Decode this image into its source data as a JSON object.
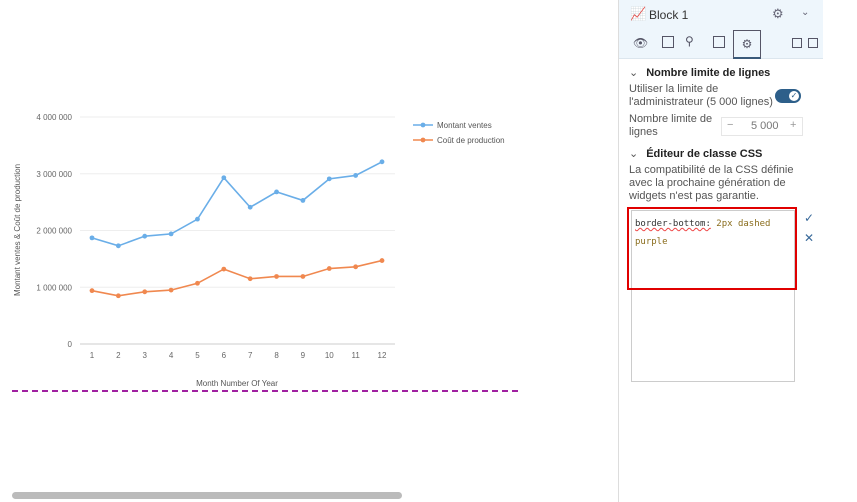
{
  "panel": {
    "title": "Block 1",
    "section1": {
      "title": "Nombre limite de lignes",
      "toggle_label": "Utiliser la limite de l'administrateur (5 000 lignes)",
      "toggle_on": true,
      "limit_label": "Nombre limite de lignes",
      "limit_value": "5 000",
      "minus": "−",
      "plus": "+"
    },
    "section2": {
      "title": "Éditeur de classe CSS",
      "note": "La compatibilité de la CSS définie avec la prochaine génération de widgets n'est pas garantie.",
      "css_property": "border-bottom:",
      "css_value": " 2px dashed purple",
      "apply": "✓",
      "cancel": "✕"
    }
  },
  "colors": {
    "series1": "#6aaee8",
    "series2": "#f0884f",
    "dashed_border": "#a020a0",
    "highlight": "#e00000"
  },
  "chart_data": {
    "type": "line",
    "categories": [
      "1",
      "2",
      "3",
      "4",
      "5",
      "6",
      "7",
      "8",
      "9",
      "10",
      "11",
      "12"
    ],
    "series": [
      {
        "name": "Montant ventes",
        "values": [
          1870000,
          1730000,
          1900000,
          1940000,
          2200000,
          2930000,
          2410000,
          2680000,
          2530000,
          2910000,
          2970000,
          3210000
        ]
      },
      {
        "name": "Coût de production",
        "values": [
          940000,
          850000,
          920000,
          950000,
          1070000,
          1320000,
          1150000,
          1190000,
          1190000,
          1330000,
          1360000,
          1470000
        ]
      }
    ],
    "yticks": [
      "0",
      "1 000 000",
      "2 000 000",
      "3 000 000",
      "4 000 000"
    ],
    "ylim": [
      0,
      4000000
    ],
    "xlabel": "Month Number Of Year",
    "ylabel": "Montant ventes & Coût de production",
    "legend": "top-right",
    "grid": true
  }
}
